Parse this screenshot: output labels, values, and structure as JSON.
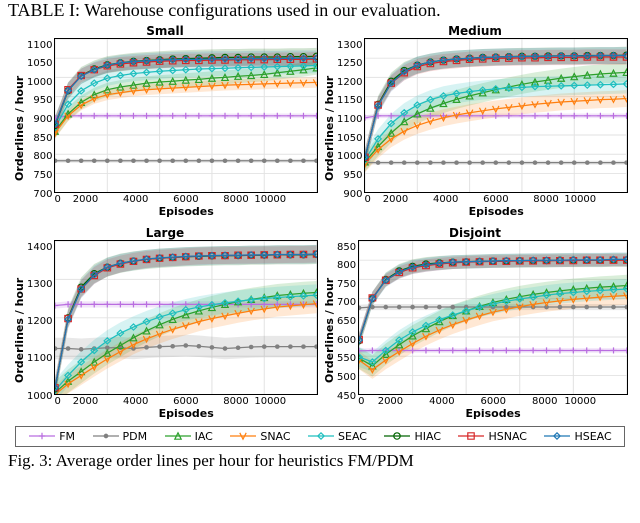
{
  "top_caption": "TABLE I: Warehouse configurations used in our evaluation.",
  "bottom_caption": "Fig. 3: Average order lines per hour for heuristics FM/PDM",
  "x_label": "Episodes",
  "y_label": "Orderlines / hour",
  "x_domain": [
    0,
    10000
  ],
  "x_ticks": [
    0,
    2000,
    4000,
    6000,
    8000,
    10000
  ],
  "line_width": 1.3,
  "marker_size": 3.2,
  "marker_stroke": 1.2,
  "band_opacity": 0.18,
  "grid_color": "#e2e2e2",
  "background": "#ffffff",
  "legend_border": "#666666",
  "font_sizes": {
    "title": 12,
    "axis_label": 11,
    "tick": 10,
    "legend": 11,
    "caption": 18
  },
  "series": [
    {
      "id": "FM",
      "label": "FM",
      "color": "#b96de0",
      "marker": "plus"
    },
    {
      "id": "PDM",
      "label": "PDM",
      "color": "#808080",
      "marker": "dot"
    },
    {
      "id": "IAC",
      "label": "IAC",
      "color": "#2ca02c",
      "marker": "tri"
    },
    {
      "id": "SNAC",
      "label": "SNAC",
      "color": "#ff7f0e",
      "marker": "vee"
    },
    {
      "id": "SEAC",
      "label": "SEAC",
      "color": "#1fbfbf",
      "marker": "diamond"
    },
    {
      "id": "HIAC",
      "label": "HIAC",
      "color": "#006400",
      "marker": "circle"
    },
    {
      "id": "HSNAC",
      "label": "HSNAC",
      "color": "#d62728",
      "marker": "square"
    },
    {
      "id": "HSEAC",
      "label": "HSEAC",
      "color": "#1f77b4",
      "marker": "diamond"
    }
  ],
  "panels": [
    {
      "id": "small",
      "title": "Small",
      "ylim": [
        700,
        1100
      ],
      "ytick_step": 50,
      "x": [
        0,
        500,
        1000,
        1500,
        2000,
        2500,
        3000,
        3500,
        4000,
        4500,
        5000,
        5500,
        6000,
        6500,
        7000,
        7500,
        8000,
        8500,
        9000,
        9500,
        10000
      ],
      "data": {
        "FM": {
          "y": [
            895,
            900,
            900,
            900,
            900,
            900,
            900,
            900,
            900,
            900,
            900,
            900,
            900,
            900,
            900,
            900,
            900,
            900,
            900,
            900,
            900
          ],
          "band": 6
        },
        "PDM": {
          "y": [
            783,
            783,
            783,
            783,
            783,
            783,
            783,
            783,
            783,
            783,
            783,
            783,
            783,
            783,
            783,
            783,
            783,
            783,
            783,
            783,
            783
          ],
          "band": 5
        },
        "IAC": {
          "y": [
            860,
            905,
            935,
            955,
            968,
            975,
            980,
            985,
            988,
            990,
            993,
            995,
            998,
            1000,
            1003,
            1005,
            1008,
            1012,
            1016,
            1020,
            1025
          ],
          "band": 18
        },
        "SNAC": {
          "y": [
            855,
            900,
            928,
            945,
            955,
            960,
            965,
            968,
            970,
            972,
            974,
            976,
            978,
            980,
            981,
            982,
            983,
            984,
            985,
            986,
            987
          ],
          "band": 14
        },
        "SEAC": {
          "y": [
            870,
            930,
            965,
            985,
            998,
            1005,
            1010,
            1013,
            1016,
            1018,
            1020,
            1022,
            1023,
            1024,
            1025,
            1026,
            1027,
            1028,
            1029,
            1030,
            1031
          ],
          "band": 20
        },
        "HIAC": {
          "y": [
            875,
            965,
            1005,
            1022,
            1033,
            1038,
            1042,
            1044,
            1046,
            1048,
            1049,
            1050,
            1051,
            1052,
            1052,
            1053,
            1053,
            1053,
            1054,
            1054,
            1055
          ],
          "band": 22
        },
        "HSNAC": {
          "y": [
            878,
            968,
            1005,
            1020,
            1030,
            1035,
            1038,
            1040,
            1042,
            1043,
            1044,
            1044,
            1045,
            1045,
            1046,
            1046,
            1046,
            1047,
            1047,
            1047,
            1048
          ],
          "band": 18
        },
        "HSEAC": {
          "y": [
            878,
            966,
            1003,
            1020,
            1032,
            1038,
            1041,
            1043,
            1045,
            1046,
            1047,
            1047,
            1048,
            1048,
            1048,
            1049,
            1049,
            1049,
            1050,
            1050,
            1050
          ],
          "band": 20
        }
      }
    },
    {
      "id": "medium",
      "title": "Medium",
      "ylim": [
        900,
        1300
      ],
      "ytick_step": 50,
      "x": [
        0,
        500,
        1000,
        1500,
        2000,
        2500,
        3000,
        3500,
        4000,
        4500,
        5000,
        5500,
        6000,
        6500,
        7000,
        7500,
        8000,
        8500,
        9000,
        9500,
        10000
      ],
      "data": {
        "FM": {
          "y": [
            1095,
            1100,
            1100,
            1100,
            1100,
            1100,
            1100,
            1100,
            1100,
            1100,
            1100,
            1100,
            1100,
            1100,
            1100,
            1100,
            1100,
            1100,
            1100,
            1100,
            1100
          ],
          "band": 6
        },
        "PDM": {
          "y": [
            978,
            978,
            978,
            978,
            978,
            978,
            978,
            978,
            978,
            978,
            978,
            978,
            978,
            978,
            978,
            978,
            978,
            978,
            978,
            978,
            978
          ],
          "band": 5
        },
        "IAC": {
          "y": [
            980,
            1020,
            1055,
            1085,
            1105,
            1120,
            1132,
            1143,
            1152,
            1160,
            1168,
            1175,
            1182,
            1188,
            1193,
            1198,
            1202,
            1206,
            1209,
            1211,
            1213
          ],
          "band": 25
        },
        "SNAC": {
          "y": [
            975,
            1012,
            1040,
            1060,
            1075,
            1086,
            1095,
            1102,
            1108,
            1113,
            1118,
            1122,
            1126,
            1130,
            1133,
            1136,
            1138,
            1140,
            1142,
            1143,
            1145
          ],
          "band": 22
        },
        "SEAC": {
          "y": [
            985,
            1040,
            1080,
            1108,
            1128,
            1142,
            1152,
            1158,
            1163,
            1167,
            1170,
            1172,
            1174,
            1176,
            1177,
            1178,
            1179,
            1180,
            1181,
            1182,
            1183
          ],
          "band": 25
        },
        "HIAC": {
          "y": [
            990,
            1130,
            1190,
            1218,
            1232,
            1240,
            1245,
            1248,
            1250,
            1252,
            1253,
            1254,
            1255,
            1255,
            1256,
            1256,
            1256,
            1257,
            1257,
            1257,
            1258
          ],
          "band": 22
        },
        "HSNAC": {
          "y": [
            992,
            1128,
            1185,
            1212,
            1228,
            1236,
            1241,
            1244,
            1247,
            1248,
            1250,
            1250,
            1251,
            1251,
            1252,
            1252,
            1252,
            1253,
            1253,
            1253,
            1253
          ],
          "band": 20
        },
        "HSEAC": {
          "y": [
            992,
            1126,
            1185,
            1215,
            1232,
            1240,
            1245,
            1248,
            1250,
            1252,
            1253,
            1254,
            1254,
            1255,
            1255,
            1256,
            1256,
            1256,
            1257,
            1257,
            1257
          ],
          "band": 22
        }
      }
    },
    {
      "id": "large",
      "title": "Large",
      "ylim": [
        1000,
        1400
      ],
      "ytick_step": 100,
      "x": [
        0,
        500,
        1000,
        1500,
        2000,
        2500,
        3000,
        3500,
        4000,
        4500,
        5000,
        5500,
        6000,
        6500,
        7000,
        7500,
        8000,
        8500,
        9000,
        9500,
        10000
      ],
      "data": {
        "FM": {
          "y": [
            1232,
            1235,
            1235,
            1235,
            1235,
            1235,
            1235,
            1235,
            1235,
            1235,
            1235,
            1235,
            1235,
            1235,
            1235,
            1235,
            1235,
            1235,
            1235,
            1235,
            1235
          ],
          "band": 8
        },
        "PDM": {
          "y": [
            1120,
            1120,
            1118,
            1120,
            1122,
            1122,
            1120,
            1123,
            1125,
            1126,
            1128,
            1126,
            1123,
            1120,
            1122,
            1124,
            1125,
            1125,
            1125,
            1125,
            1125
          ],
          "band": 28
        },
        "IAC": {
          "y": [
            1005,
            1035,
            1060,
            1085,
            1108,
            1128,
            1148,
            1166,
            1182,
            1196,
            1208,
            1218,
            1227,
            1235,
            1242,
            1248,
            1253,
            1258,
            1261,
            1264,
            1266
          ],
          "band": 30
        },
        "SNAC": {
          "y": [
            1000,
            1028,
            1050,
            1072,
            1093,
            1112,
            1130,
            1145,
            1158,
            1170,
            1180,
            1190,
            1198,
            1205,
            1212,
            1218,
            1223,
            1228,
            1231,
            1234,
            1237
          ],
          "band": 25
        },
        "SEAC": {
          "y": [
            1010,
            1050,
            1085,
            1115,
            1140,
            1160,
            1176,
            1190,
            1202,
            1212,
            1221,
            1228,
            1234,
            1239,
            1243,
            1247,
            1250,
            1253,
            1255,
            1257,
            1259
          ],
          "band": 28
        },
        "HIAC": {
          "y": [
            1015,
            1200,
            1280,
            1315,
            1332,
            1342,
            1348,
            1352,
            1355,
            1357,
            1359,
            1360,
            1361,
            1362,
            1362,
            1363,
            1363,
            1364,
            1364,
            1364,
            1365
          ],
          "band": 25
        },
        "HSNAC": {
          "y": [
            1018,
            1198,
            1275,
            1310,
            1330,
            1340,
            1347,
            1352,
            1355,
            1357,
            1359,
            1361,
            1362,
            1362,
            1363,
            1363,
            1364,
            1364,
            1365,
            1365,
            1366
          ],
          "band": 22
        },
        "HSEAC": {
          "y": [
            1018,
            1196,
            1275,
            1312,
            1332,
            1342,
            1348,
            1353,
            1356,
            1358,
            1360,
            1361,
            1362,
            1363,
            1363,
            1364,
            1364,
            1365,
            1365,
            1365,
            1366
          ],
          "band": 24
        }
      }
    },
    {
      "id": "disjoint",
      "title": "Disjoint",
      "ylim": [
        450,
        850
      ],
      "ytick_step": 50,
      "x": [
        0,
        500,
        1000,
        1500,
        2000,
        2500,
        3000,
        3500,
        4000,
        4500,
        5000,
        5500,
        6000,
        6500,
        7000,
        7500,
        8000,
        8500,
        9000,
        9500,
        10000
      ],
      "data": {
        "FM": {
          "y": [
            564,
            565,
            565,
            565,
            565,
            565,
            565,
            565,
            565,
            565,
            565,
            565,
            565,
            565,
            565,
            565,
            565,
            565,
            565,
            565,
            565
          ],
          "band": 6
        },
        "PDM": {
          "y": [
            676,
            678,
            678,
            678,
            678,
            678,
            678,
            678,
            678,
            678,
            678,
            678,
            678,
            678,
            678,
            678,
            678,
            678,
            678,
            678,
            678
          ],
          "band": 8
        },
        "IAC": {
          "y": [
            545,
            525,
            555,
            580,
            603,
            622,
            640,
            656,
            668,
            680,
            690,
            698,
            705,
            711,
            716,
            720,
            724,
            727,
            730,
            732,
            734
          ],
          "band": 28
        },
        "SNAC": {
          "y": [
            540,
            515,
            540,
            562,
            583,
            602,
            618,
            632,
            644,
            655,
            665,
            672,
            679,
            685,
            690,
            694,
            698,
            701,
            704,
            706,
            708
          ],
          "band": 24
        },
        "SEAC": {
          "y": [
            548,
            535,
            565,
            592,
            613,
            630,
            645,
            657,
            668,
            678,
            686,
            693,
            699,
            704,
            709,
            713,
            716,
            719,
            721,
            723,
            725
          ],
          "band": 26
        },
        "HIAC": {
          "y": [
            590,
            700,
            750,
            772,
            784,
            790,
            793,
            795,
            796,
            797,
            798,
            798,
            799,
            799,
            799,
            800,
            800,
            800,
            800,
            801,
            801
          ],
          "band": 18
        },
        "HSNAC": {
          "y": [
            593,
            702,
            748,
            768,
            780,
            786,
            790,
            793,
            795,
            796,
            797,
            797,
            798,
            798,
            799,
            799,
            799,
            800,
            800,
            800,
            800
          ],
          "band": 16
        },
        "HSEAC": {
          "y": [
            592,
            700,
            748,
            770,
            782,
            788,
            792,
            795,
            796,
            797,
            798,
            799,
            799,
            800,
            800,
            800,
            801,
            801,
            801,
            802,
            802
          ],
          "band": 18
        }
      }
    }
  ]
}
